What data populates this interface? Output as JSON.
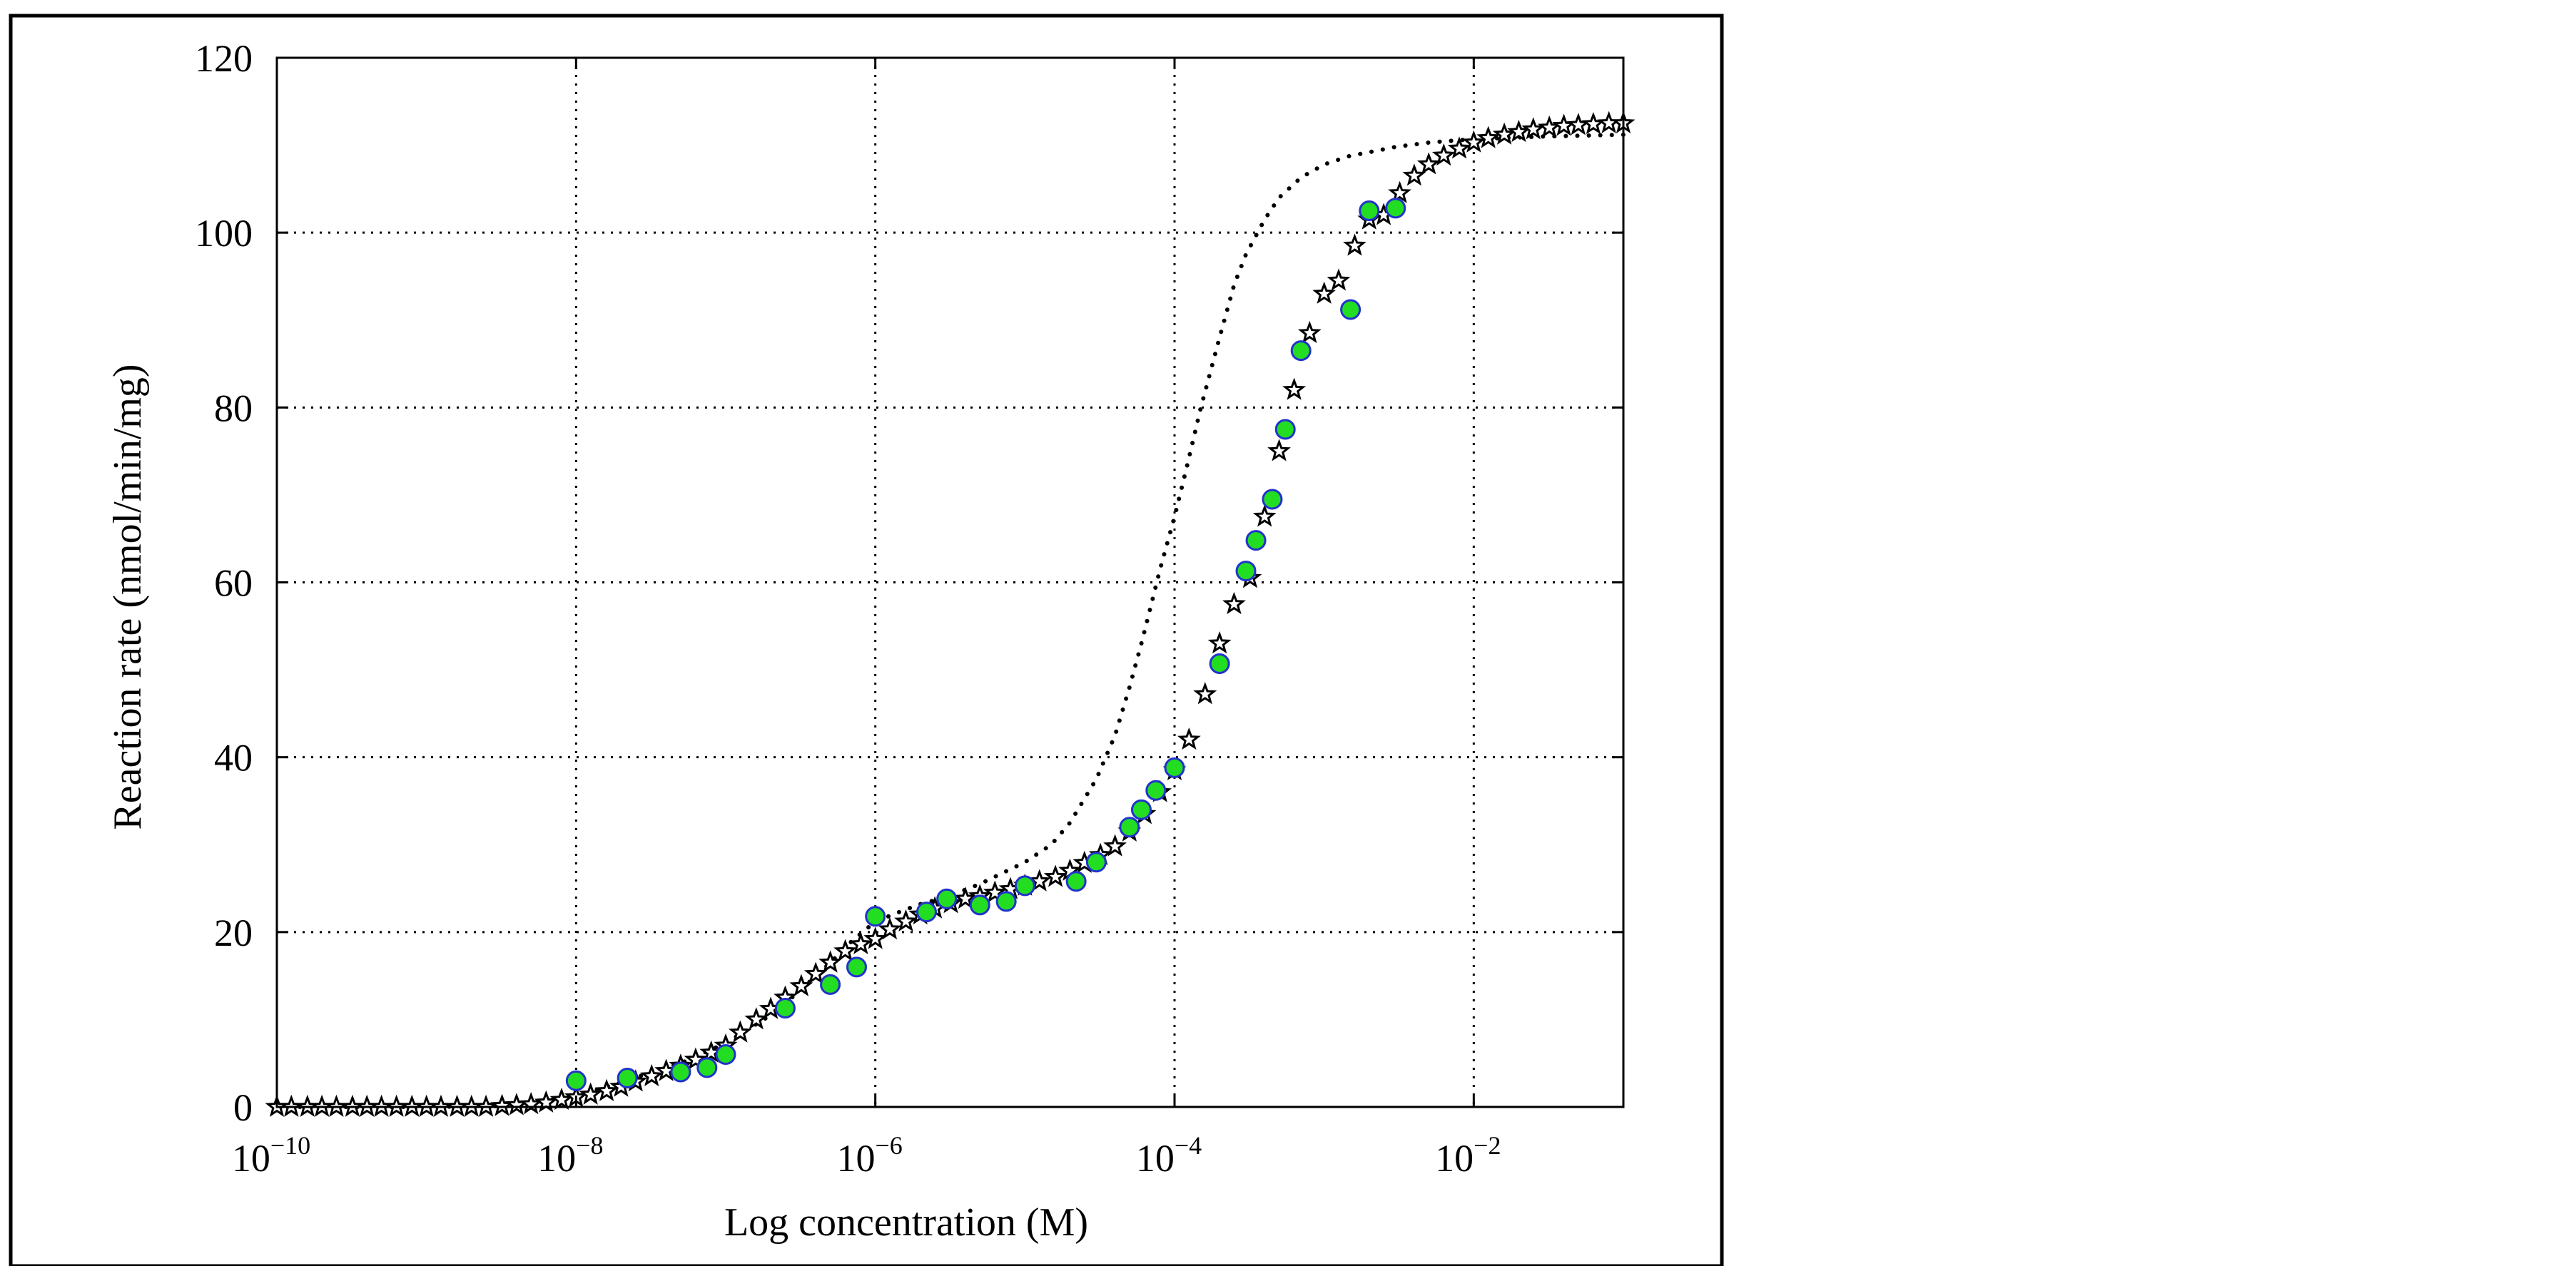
{
  "chart_data": {
    "type": "scatter",
    "xlabel": "Log concentration (M)",
    "ylabel": "Reaction rate (nmol/min/mg)",
    "x_scale": "log",
    "xlim": [
      1e-10,
      0.1
    ],
    "ylim": [
      0,
      120
    ],
    "grid": true,
    "x_ticks": [
      {
        "value": 1e-10,
        "base": "10",
        "exp": "−10"
      },
      {
        "value": 1e-08,
        "base": "10",
        "exp": "−8"
      },
      {
        "value": 1e-06,
        "base": "10",
        "exp": "−6"
      },
      {
        "value": 0.0001,
        "base": "10",
        "exp": "−4"
      },
      {
        "value": 0.01,
        "base": "10",
        "exp": "−2"
      }
    ],
    "y_ticks": [
      {
        "value": 0,
        "label": "0"
      },
      {
        "value": 20,
        "label": "20"
      },
      {
        "value": 40,
        "label": "40"
      },
      {
        "value": 60,
        "label": "60"
      },
      {
        "value": 80,
        "label": "80"
      },
      {
        "value": 100,
        "label": "100"
      },
      {
        "value": 120,
        "label": "120"
      }
    ],
    "series": [
      {
        "style": "circles",
        "fill": "#22dd22",
        "stroke": "#2233cc",
        "points": [
          [
            1e-08,
            3
          ],
          [
            2.2e-08,
            3.3
          ],
          [
            5e-08,
            4
          ],
          [
            7.5e-08,
            4.5
          ],
          [
            1e-07,
            6
          ],
          [
            2.5e-07,
            11.3
          ],
          [
            5e-07,
            14
          ],
          [
            7.5e-07,
            16
          ],
          [
            1e-06,
            21.8
          ],
          [
            2.2e-06,
            22.3
          ],
          [
            3e-06,
            23.8
          ],
          [
            5e-06,
            23.1
          ],
          [
            7.5e-06,
            23.5
          ],
          [
            1e-05,
            25.3
          ],
          [
            2.2e-05,
            25.8
          ],
          [
            3e-05,
            28
          ],
          [
            5e-05,
            32
          ],
          [
            6e-05,
            34
          ],
          [
            7.5e-05,
            36.2
          ],
          [
            0.0001,
            38.8
          ],
          [
            0.0002,
            50.7
          ],
          [
            0.0003,
            61.3
          ],
          [
            0.00035,
            64.8
          ],
          [
            0.00045,
            69.5
          ],
          [
            0.00055,
            77.5
          ],
          [
            0.0007,
            86.5
          ],
          [
            0.0015,
            91.2
          ],
          [
            0.002,
            102.5
          ],
          [
            0.003,
            102.8
          ]
        ]
      },
      {
        "style": "stars",
        "stroke": "#000000",
        "points": [
          [
            1e-10,
            0
          ],
          [
            1.25e-10,
            0
          ],
          [
            1.6e-10,
            0
          ],
          [
            2e-10,
            0
          ],
          [
            2.5e-10,
            0
          ],
          [
            3.2e-10,
            0
          ],
          [
            4e-10,
            0
          ],
          [
            5e-10,
            0
          ],
          [
            6.3e-10,
            0
          ],
          [
            8e-10,
            0
          ],
          [
            1e-09,
            0
          ],
          [
            1.25e-09,
            0
          ],
          [
            1.6e-09,
            0
          ],
          [
            2e-09,
            0
          ],
          [
            2.5e-09,
            0
          ],
          [
            3.2e-09,
            0.1
          ],
          [
            4e-09,
            0.2
          ],
          [
            5e-09,
            0.3
          ],
          [
            6.3e-09,
            0.5
          ],
          [
            8e-09,
            0.8
          ],
          [
            1e-08,
            1.1
          ],
          [
            1.25e-08,
            1.4
          ],
          [
            1.6e-08,
            1.8
          ],
          [
            2e-08,
            2.3
          ],
          [
            2.5e-08,
            2.9
          ],
          [
            3.2e-08,
            3.5
          ],
          [
            4e-08,
            4.1
          ],
          [
            5e-08,
            4.7
          ],
          [
            6.3e-08,
            5.4
          ],
          [
            8e-08,
            6.2
          ],
          [
            1e-07,
            7
          ],
          [
            1.25e-07,
            8.5
          ],
          [
            1.6e-07,
            10
          ],
          [
            2e-07,
            11.2
          ],
          [
            2.5e-07,
            12.5
          ],
          [
            3.2e-07,
            13.8
          ],
          [
            4e-07,
            15.2
          ],
          [
            5e-07,
            16.5
          ],
          [
            6.3e-07,
            17.8
          ],
          [
            8e-07,
            18.6
          ],
          [
            1e-06,
            19.2
          ],
          [
            1.25e-06,
            20.3
          ],
          [
            1.6e-06,
            21.2
          ],
          [
            2e-06,
            22
          ],
          [
            2.5e-06,
            22.7
          ],
          [
            3.2e-06,
            23.3
          ],
          [
            4e-06,
            23.8
          ],
          [
            5e-06,
            24.1
          ],
          [
            6.3e-06,
            24.5
          ],
          [
            8e-06,
            24.9
          ],
          [
            1e-05,
            25.3
          ],
          [
            1.25e-05,
            25.8
          ],
          [
            1.6e-05,
            26.3
          ],
          [
            2e-05,
            27
          ],
          [
            2.5e-05,
            27.9
          ],
          [
            3.2e-05,
            28.8
          ],
          [
            4e-05,
            29.8
          ],
          [
            5e-05,
            31.5
          ],
          [
            6.3e-05,
            33.5
          ],
          [
            8e-05,
            36
          ],
          [
            0.0001,
            38.5
          ],
          [
            0.000125,
            42
          ],
          [
            0.00016,
            47.2
          ],
          [
            0.0002,
            53
          ],
          [
            0.00025,
            57.5
          ],
          [
            0.00032,
            60.5
          ],
          [
            0.0004,
            67.5
          ],
          [
            0.0005,
            75
          ],
          [
            0.00063,
            82
          ],
          [
            0.0008,
            88.5
          ],
          [
            0.001,
            93
          ],
          [
            0.00125,
            94.5
          ],
          [
            0.0016,
            98.5
          ],
          [
            0.002,
            101.5
          ],
          [
            0.0025,
            102
          ],
          [
            0.0032,
            104.5
          ],
          [
            0.004,
            106.5
          ],
          [
            0.005,
            107.8
          ],
          [
            0.0063,
            108.8
          ],
          [
            0.008,
            109.6
          ],
          [
            0.01,
            110.3
          ],
          [
            0.0125,
            110.8
          ],
          [
            0.016,
            111.2
          ],
          [
            0.02,
            111.5
          ],
          [
            0.025,
            111.8
          ],
          [
            0.032,
            112
          ],
          [
            0.04,
            112.2
          ],
          [
            0.05,
            112.3
          ],
          [
            0.063,
            112.4
          ],
          [
            0.08,
            112.5
          ],
          [
            0.1,
            112.5
          ]
        ]
      },
      {
        "style": "dotted-line",
        "stroke": "#000000",
        "points": [
          [
            1e-10,
            0
          ],
          [
            1e-09,
            0
          ],
          [
            3e-09,
            0.1
          ],
          [
            5e-09,
            0.4
          ],
          [
            1e-08,
            1.3
          ],
          [
            2e-08,
            2.8
          ],
          [
            3e-08,
            3.8
          ],
          [
            5e-08,
            5
          ],
          [
            1e-07,
            7.3
          ],
          [
            2e-07,
            10.5
          ],
          [
            3e-07,
            13
          ],
          [
            5e-07,
            16.5
          ],
          [
            7e-07,
            19
          ],
          [
            1e-06,
            21.2
          ],
          [
            1.5e-06,
            22.4
          ],
          [
            2e-06,
            23.2
          ],
          [
            3e-06,
            24
          ],
          [
            5e-06,
            25.5
          ],
          [
            1e-05,
            28
          ],
          [
            1.5e-05,
            30
          ],
          [
            2e-05,
            32.5
          ],
          [
            3e-05,
            37.5
          ],
          [
            4e-05,
            42.5
          ],
          [
            5e-05,
            48
          ],
          [
            6e-05,
            53
          ],
          [
            7e-05,
            57.5
          ],
          [
            8e-05,
            61.5
          ],
          [
            0.0001,
            67.5
          ],
          [
            0.00012,
            73
          ],
          [
            0.00015,
            80
          ],
          [
            0.0002,
            88
          ],
          [
            0.00025,
            94
          ],
          [
            0.0003,
            97.5
          ],
          [
            0.0004,
            101.5
          ],
          [
            0.0005,
            104
          ],
          [
            0.0007,
            106.3
          ],
          [
            0.001,
            107.8
          ],
          [
            0.0015,
            108.8
          ],
          [
            0.002,
            109.2
          ],
          [
            0.003,
            109.8
          ],
          [
            0.005,
            110.3
          ],
          [
            0.01,
            110.7
          ],
          [
            0.03,
            111
          ],
          [
            0.1,
            111.2
          ]
        ]
      }
    ]
  }
}
